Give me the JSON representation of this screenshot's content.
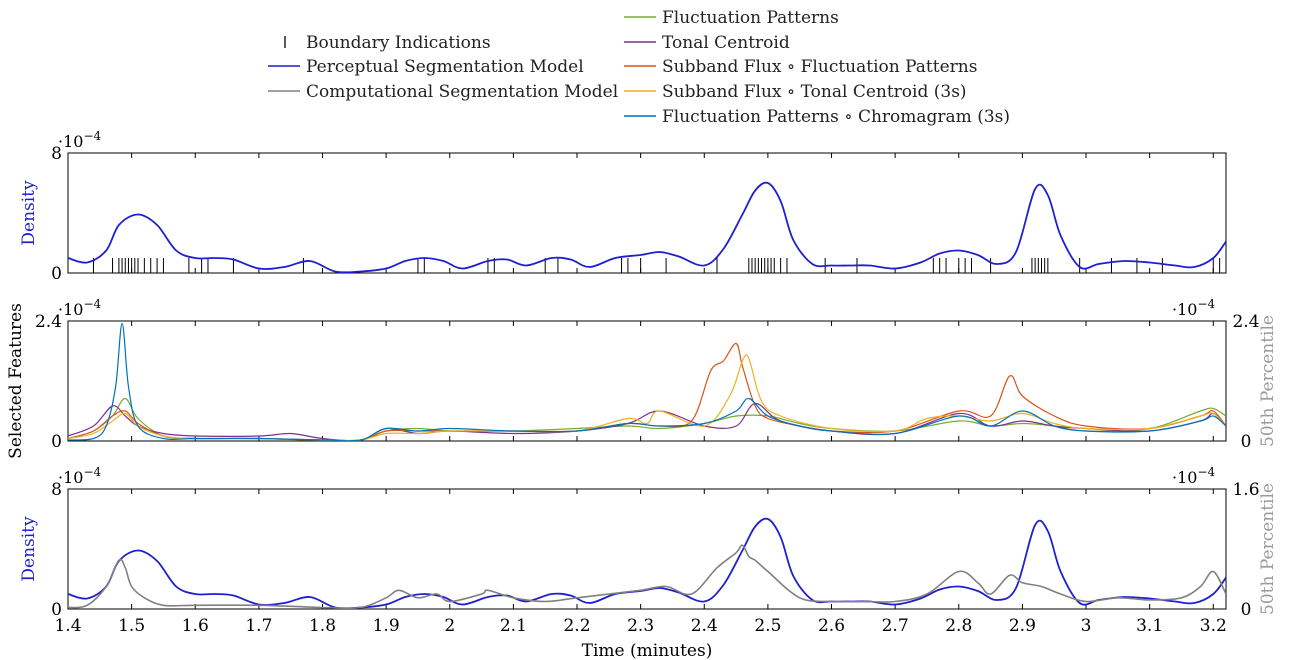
{
  "colors": {
    "perceptual": "#1f1fcf",
    "computational": "#808080",
    "fluctuation_patterns": "#77ac30",
    "tonal_centroid": "#7e2f8e",
    "subband_fp": "#d95319",
    "subband_tc": "#edb120",
    "fp_chroma": "#0072bd",
    "density_label": "#1f1fcf",
    "percentile_label": "#9a9a9a",
    "boundary": "#000000"
  },
  "legend": {
    "items": [
      {
        "label": "Boundary Indications",
        "symbol": "tick",
        "color_key": "boundary"
      },
      {
        "label": "Perceptual Segmentation Model",
        "symbol": "line",
        "color_key": "perceptual"
      },
      {
        "label": "Computational Segmentation Model",
        "symbol": "line",
        "color_key": "computational"
      },
      {
        "label": "Fluctuation Patterns",
        "symbol": "line",
        "color_key": "fluctuation_patterns"
      },
      {
        "label": "Tonal Centroid",
        "symbol": "line",
        "color_key": "tonal_centroid"
      },
      {
        "label": "Subband Flux ∘ Fluctuation Patterns",
        "symbol": "line",
        "color_key": "subband_fp"
      },
      {
        "label": "Subband Flux ∘ Tonal Centroid (3s)",
        "symbol": "line",
        "color_key": "subband_tc"
      },
      {
        "label": "Fluctuation Patterns ∘ Chromagram (3s)",
        "symbol": "line",
        "color_key": "fp_chroma"
      }
    ]
  },
  "xaxis": {
    "label": "Time (minutes)",
    "ticks": [
      "1.4",
      "1.5",
      "1.6",
      "1.7",
      "1.8",
      "1.9",
      "2",
      "2.1",
      "2.2",
      "2.3",
      "2.4",
      "2.5",
      "2.6",
      "2.7",
      "2.8",
      "2.9",
      "3",
      "3.1",
      "3.2"
    ]
  },
  "chart_data": [
    {
      "type": "line",
      "panel": "top",
      "ylabel": "Density",
      "exponent_label": "·10",
      "exponent_power": "−4",
      "xlim": [
        1.4,
        3.22
      ],
      "ylim": [
        0,
        8
      ],
      "yticks": [
        "0",
        "8"
      ],
      "series": [
        {
          "name": "Perceptual Segmentation Model",
          "color_key": "perceptual",
          "x": [
            1.4,
            1.43,
            1.46,
            1.48,
            1.51,
            1.54,
            1.57,
            1.6,
            1.63,
            1.66,
            1.7,
            1.74,
            1.78,
            1.82,
            1.86,
            1.9,
            1.93,
            1.96,
            1.99,
            2.02,
            2.06,
            2.09,
            2.12,
            2.16,
            2.19,
            2.22,
            2.26,
            2.3,
            2.33,
            2.36,
            2.4,
            2.43,
            2.46,
            2.48,
            2.5,
            2.52,
            2.54,
            2.57,
            2.6,
            2.63,
            2.66,
            2.7,
            2.74,
            2.77,
            2.8,
            2.83,
            2.86,
            2.89,
            2.92,
            2.94,
            2.96,
            2.99,
            3.02,
            3.06,
            3.1,
            3.14,
            3.17,
            3.2,
            3.22
          ],
          "values": [
            1.0,
            0.7,
            1.5,
            3.2,
            3.9,
            3.2,
            1.5,
            1.0,
            1.0,
            0.9,
            0.3,
            0.4,
            0.8,
            0.1,
            0.1,
            0.3,
            0.8,
            1.0,
            0.8,
            0.3,
            0.8,
            0.9,
            0.5,
            1.0,
            0.9,
            0.4,
            1.0,
            1.2,
            1.4,
            1.1,
            0.5,
            1.6,
            3.9,
            5.5,
            6.0,
            4.8,
            2.2,
            0.6,
            0.5,
            0.5,
            0.5,
            0.3,
            0.7,
            1.3,
            1.5,
            1.2,
            0.6,
            1.4,
            5.6,
            5.2,
            2.5,
            0.4,
            0.6,
            0.8,
            0.7,
            0.5,
            0.4,
            1.0,
            2.1
          ]
        }
      ],
      "boundaries": [
        1.44,
        1.47,
        1.48,
        1.485,
        1.49,
        1.495,
        1.5,
        1.505,
        1.51,
        1.52,
        1.53,
        1.54,
        1.55,
        1.59,
        1.61,
        1.62,
        1.66,
        1.77,
        1.95,
        1.96,
        2.06,
        2.07,
        2.15,
        2.17,
        2.27,
        2.28,
        2.3,
        2.34,
        2.42,
        2.47,
        2.475,
        2.48,
        2.485,
        2.49,
        2.495,
        2.5,
        2.505,
        2.51,
        2.52,
        2.53,
        2.59,
        2.64,
        2.76,
        2.77,
        2.78,
        2.8,
        2.81,
        2.82,
        2.85,
        2.915,
        2.92,
        2.925,
        2.93,
        2.935,
        2.94,
        2.99,
        3.04,
        3.08,
        3.12,
        3.2,
        3.21
      ]
    },
    {
      "type": "line",
      "panel": "middle",
      "ylabel": "Selected Features",
      "y2label": "50th Percentile",
      "exponent_label": "·10",
      "exponent_power": "−4",
      "xlim": [
        1.4,
        3.22
      ],
      "ylim": [
        0,
        2.4
      ],
      "yticks": [
        "0",
        "2.4"
      ],
      "y2ticks": [
        "0",
        "2.4"
      ],
      "series": [
        {
          "name": "Fluctuation Patterns",
          "color_key": "fluctuation_patterns",
          "x": [
            1.4,
            1.44,
            1.47,
            1.49,
            1.51,
            1.55,
            1.6,
            1.7,
            1.78,
            1.86,
            1.9,
            1.95,
            2.0,
            2.1,
            2.2,
            2.28,
            2.33,
            2.4,
            2.45,
            2.5,
            2.55,
            2.6,
            2.7,
            2.8,
            2.85,
            2.9,
            2.95,
            3.0,
            3.1,
            3.18,
            3.2,
            3.22
          ],
          "values": [
            0.05,
            0.2,
            0.5,
            0.85,
            0.45,
            0.1,
            0.05,
            0.05,
            0.02,
            0.02,
            0.2,
            0.25,
            0.2,
            0.2,
            0.25,
            0.3,
            0.25,
            0.35,
            0.5,
            0.5,
            0.35,
            0.25,
            0.2,
            0.4,
            0.3,
            0.35,
            0.3,
            0.2,
            0.25,
            0.6,
            0.65,
            0.5
          ]
        },
        {
          "name": "Tonal Centroid",
          "color_key": "tonal_centroid",
          "x": [
            1.4,
            1.44,
            1.47,
            1.49,
            1.51,
            1.55,
            1.6,
            1.7,
            1.75,
            1.8,
            1.86,
            1.9,
            1.95,
            2.0,
            2.1,
            2.2,
            2.28,
            2.33,
            2.4,
            2.45,
            2.48,
            2.52,
            2.6,
            2.7,
            2.8,
            2.85,
            2.9,
            2.95,
            3.0,
            3.1,
            3.18,
            3.2,
            3.22
          ],
          "values": [
            0.1,
            0.3,
            0.7,
            0.5,
            0.3,
            0.15,
            0.1,
            0.1,
            0.15,
            0.05,
            0.02,
            0.25,
            0.15,
            0.2,
            0.15,
            0.2,
            0.35,
            0.6,
            0.3,
            0.3,
            0.75,
            0.4,
            0.2,
            0.15,
            0.55,
            0.3,
            0.4,
            0.3,
            0.25,
            0.2,
            0.4,
            0.55,
            0.3
          ]
        },
        {
          "name": "Subband Flux ∘ Fluctuation Patterns",
          "color_key": "subband_fp",
          "x": [
            1.4,
            1.44,
            1.47,
            1.49,
            1.51,
            1.55,
            1.6,
            1.7,
            1.8,
            1.86,
            1.9,
            1.95,
            2.0,
            2.1,
            2.2,
            2.28,
            2.33,
            2.38,
            2.41,
            2.43,
            2.45,
            2.46,
            2.48,
            2.5,
            2.55,
            2.6,
            2.7,
            2.8,
            2.85,
            2.88,
            2.9,
            2.95,
            3.0,
            3.1,
            3.18,
            3.2,
            3.22
          ],
          "values": [
            0.05,
            0.2,
            0.5,
            0.6,
            0.35,
            0.1,
            0.05,
            0.05,
            0.02,
            0.02,
            0.2,
            0.2,
            0.2,
            0.2,
            0.2,
            0.35,
            0.3,
            0.4,
            1.4,
            1.6,
            1.95,
            1.5,
            0.7,
            0.45,
            0.3,
            0.2,
            0.2,
            0.6,
            0.5,
            1.3,
            0.9,
            0.5,
            0.3,
            0.25,
            0.5,
            0.6,
            0.3
          ]
        },
        {
          "name": "Subband Flux ∘ Tonal Centroid (3s)",
          "color_key": "subband_tc",
          "x": [
            1.4,
            1.44,
            1.47,
            1.49,
            1.51,
            1.55,
            1.6,
            1.7,
            1.8,
            1.86,
            1.9,
            1.95,
            2.0,
            2.1,
            2.2,
            2.28,
            2.31,
            2.33,
            2.4,
            2.44,
            2.46,
            2.47,
            2.49,
            2.52,
            2.6,
            2.7,
            2.75,
            2.8,
            2.85,
            2.9,
            2.95,
            3.0,
            3.1,
            3.18,
            3.2,
            3.22
          ],
          "values": [
            0.05,
            0.15,
            0.4,
            0.55,
            0.3,
            0.1,
            0.05,
            0.05,
            0.02,
            0.02,
            0.15,
            0.15,
            0.2,
            0.2,
            0.2,
            0.45,
            0.35,
            0.6,
            0.3,
            0.9,
            1.6,
            1.65,
            0.8,
            0.5,
            0.25,
            0.2,
            0.45,
            0.5,
            0.4,
            0.55,
            0.35,
            0.25,
            0.25,
            0.5,
            0.55,
            0.3
          ]
        },
        {
          "name": "Fluctuation Patterns ∘ Chromagram (3s)",
          "color_key": "fp_chroma",
          "x": [
            1.4,
            1.44,
            1.46,
            1.475,
            1.485,
            1.495,
            1.51,
            1.55,
            1.6,
            1.7,
            1.8,
            1.86,
            1.9,
            1.95,
            2.0,
            2.1,
            2.2,
            2.28,
            2.33,
            2.4,
            2.45,
            2.47,
            2.5,
            2.55,
            2.6,
            2.7,
            2.8,
            2.85,
            2.9,
            2.95,
            3.0,
            3.1,
            3.18,
            3.2,
            3.22
          ],
          "values": [
            0.02,
            0.05,
            0.3,
            1.1,
            2.35,
            1.1,
            0.3,
            0.05,
            0.05,
            0.05,
            0.02,
            0.02,
            0.25,
            0.2,
            0.25,
            0.2,
            0.2,
            0.35,
            0.3,
            0.35,
            0.6,
            0.85,
            0.5,
            0.3,
            0.2,
            0.15,
            0.5,
            0.3,
            0.6,
            0.3,
            0.2,
            0.2,
            0.4,
            0.5,
            0.3
          ]
        }
      ]
    },
    {
      "type": "line",
      "panel": "bottom",
      "ylabel": "Density",
      "y2label": "50th Percentile",
      "exponent_label": "·10",
      "exponent_power": "−4",
      "xlim": [
        1.4,
        3.22
      ],
      "ylim": [
        0,
        8
      ],
      "y2lim": [
        0,
        1.6
      ],
      "yticks": [
        "0",
        "8"
      ],
      "y2ticks": [
        "0",
        "1.6"
      ],
      "series": [
        {
          "name": "Perceptual Segmentation Model",
          "color_key": "perceptual",
          "axis": "left",
          "x": [
            1.4,
            1.43,
            1.46,
            1.48,
            1.51,
            1.54,
            1.57,
            1.6,
            1.63,
            1.66,
            1.7,
            1.74,
            1.78,
            1.82,
            1.86,
            1.9,
            1.93,
            1.96,
            1.99,
            2.02,
            2.06,
            2.09,
            2.12,
            2.16,
            2.19,
            2.22,
            2.26,
            2.3,
            2.33,
            2.36,
            2.4,
            2.43,
            2.46,
            2.48,
            2.5,
            2.52,
            2.54,
            2.57,
            2.6,
            2.63,
            2.66,
            2.7,
            2.74,
            2.77,
            2.8,
            2.83,
            2.86,
            2.89,
            2.92,
            2.94,
            2.96,
            2.99,
            3.02,
            3.06,
            3.1,
            3.14,
            3.17,
            3.2,
            3.22
          ],
          "values": [
            1.0,
            0.7,
            1.5,
            3.2,
            3.9,
            3.2,
            1.5,
            1.0,
            1.0,
            0.9,
            0.3,
            0.4,
            0.8,
            0.1,
            0.1,
            0.3,
            0.8,
            1.0,
            0.8,
            0.3,
            0.8,
            0.9,
            0.5,
            1.0,
            0.9,
            0.4,
            1.0,
            1.2,
            1.4,
            1.1,
            0.5,
            1.6,
            3.9,
            5.5,
            6.0,
            4.8,
            2.2,
            0.6,
            0.5,
            0.5,
            0.5,
            0.3,
            0.7,
            1.3,
            1.5,
            1.2,
            0.6,
            1.4,
            5.6,
            5.2,
            2.5,
            0.4,
            0.6,
            0.8,
            0.7,
            0.5,
            0.4,
            1.0,
            2.1
          ]
        },
        {
          "name": "Computational Segmentation Model",
          "color_key": "computational",
          "axis": "right",
          "x": [
            1.4,
            1.43,
            1.46,
            1.48,
            1.49,
            1.5,
            1.52,
            1.55,
            1.6,
            1.7,
            1.8,
            1.86,
            1.9,
            1.92,
            1.95,
            1.98,
            2.0,
            2.05,
            2.06,
            2.1,
            2.15,
            2.2,
            2.25,
            2.3,
            2.34,
            2.38,
            2.42,
            2.45,
            2.46,
            2.47,
            2.48,
            2.5,
            2.55,
            2.6,
            2.65,
            2.7,
            2.75,
            2.8,
            2.83,
            2.85,
            2.88,
            2.9,
            2.93,
            2.96,
            3.0,
            3.05,
            3.1,
            3.15,
            3.18,
            3.2,
            3.22
          ],
          "values": [
            0.02,
            0.05,
            0.3,
            0.65,
            0.55,
            0.3,
            0.15,
            0.05,
            0.05,
            0.05,
            0.02,
            0.02,
            0.15,
            0.25,
            0.15,
            0.2,
            0.1,
            0.2,
            0.25,
            0.15,
            0.1,
            0.15,
            0.2,
            0.25,
            0.3,
            0.2,
            0.55,
            0.75,
            0.85,
            0.7,
            0.65,
            0.5,
            0.15,
            0.1,
            0.1,
            0.1,
            0.2,
            0.5,
            0.35,
            0.2,
            0.45,
            0.35,
            0.3,
            0.2,
            0.1,
            0.15,
            0.12,
            0.15,
            0.3,
            0.5,
            0.2
          ]
        }
      ]
    }
  ]
}
